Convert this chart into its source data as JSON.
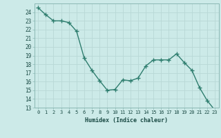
{
  "x": [
    0,
    1,
    2,
    3,
    4,
    5,
    6,
    7,
    8,
    9,
    10,
    11,
    12,
    13,
    14,
    15,
    16,
    17,
    18,
    19,
    20,
    21,
    22,
    23
  ],
  "y": [
    24.5,
    23.7,
    23.0,
    23.0,
    22.8,
    21.8,
    18.7,
    17.3,
    16.1,
    15.0,
    15.1,
    16.2,
    16.1,
    16.4,
    17.8,
    18.5,
    18.5,
    18.5,
    19.2,
    18.2,
    17.3,
    15.3,
    13.8,
    12.7
  ],
  "bg_color": "#cceae8",
  "grid_color": "#b8d8d6",
  "line_color": "#2e7d6e",
  "marker_color": "#2e7d6e",
  "xlabel": "Humidex (Indice chaleur)",
  "ylim": [
    13,
    25
  ],
  "xlim": [
    -0.5,
    23.5
  ],
  "yticks": [
    13,
    14,
    15,
    16,
    17,
    18,
    19,
    20,
    21,
    22,
    23,
    24
  ],
  "xticks": [
    0,
    1,
    2,
    3,
    4,
    5,
    6,
    7,
    8,
    9,
    10,
    11,
    12,
    13,
    14,
    15,
    16,
    17,
    18,
    19,
    20,
    21,
    22,
    23
  ]
}
